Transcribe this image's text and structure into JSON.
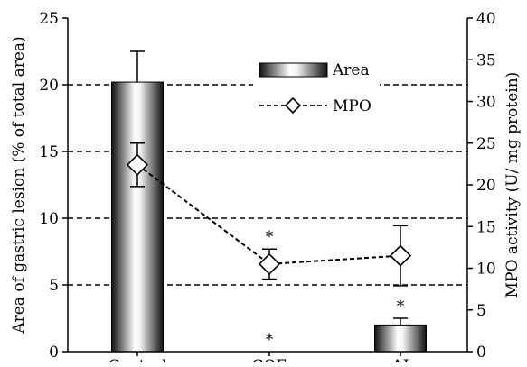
{
  "chart_data": {
    "type": "bar",
    "categories": [
      "Control",
      "CQE",
      "AJ"
    ],
    "ylabel": "Area of gastric lesion (% of total area)",
    "ylabel_right": "MPO activity (U/ mg protein)",
    "ylim": [
      0,
      25
    ],
    "ylim_right": [
      0,
      40
    ],
    "yticks": [
      0,
      5,
      10,
      15,
      20,
      25
    ],
    "yticks_right": [
      0,
      5,
      10,
      15,
      20,
      25,
      30,
      35,
      40
    ],
    "grid": "dashed horizontal lines at left-axis ticks 5-20",
    "legend_position": "top-center",
    "series": [
      {
        "name": "Area",
        "type": "bar",
        "axis": "left",
        "values": [
          20.2,
          0,
          2.0
        ],
        "error": [
          2.3,
          0,
          0.5
        ],
        "significance": [
          "",
          "*",
          "*"
        ]
      },
      {
        "name": "MPO",
        "type": "line",
        "marker": "diamond",
        "line_style": "dashed",
        "axis": "right",
        "values": [
          22.4,
          10.5,
          11.5
        ],
        "error": [
          2.6,
          1.8,
          3.6
        ],
        "significance": [
          "",
          "*",
          ""
        ]
      }
    ]
  }
}
